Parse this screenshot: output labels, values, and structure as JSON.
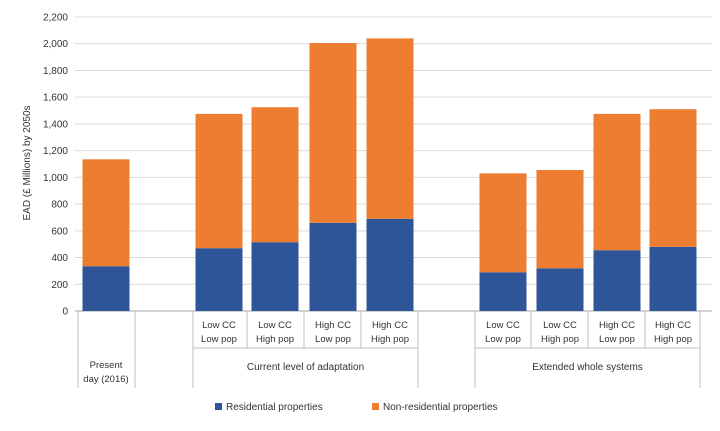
{
  "chart_data": {
    "type": "bar",
    "stacked": true,
    "ylabel": "EAD (£ Millions) by 2050s",
    "ylim": [
      0,
      2200
    ],
    "yticks": [
      "0",
      "200",
      "400",
      "600",
      "800",
      "1,000",
      "1,200",
      "1,400",
      "1,600",
      "1,800",
      "2,000",
      "2,200"
    ],
    "grid": true,
    "legend_position": "bottom",
    "colors": {
      "residential": "#2e5597",
      "nonresidential": "#ed7d31"
    },
    "series": [
      {
        "name": "Residential properties",
        "key": "residential"
      },
      {
        "name": "Non-residential properties",
        "key": "nonresidential"
      }
    ],
    "groups": [
      {
        "label": "",
        "bars": [
          {
            "label": "Present day (2016)",
            "residential": 335,
            "nonresidential": 800
          }
        ]
      },
      {
        "label": "Current level of adaptation",
        "bars": [
          {
            "label": "Low CC Low pop",
            "residential": 470,
            "nonresidential": 1005
          },
          {
            "label": "Low CC High pop",
            "residential": 515,
            "nonresidential": 1010
          },
          {
            "label": "High CC Low pop",
            "residential": 660,
            "nonresidential": 1345
          },
          {
            "label": "High CC High pop",
            "residential": 690,
            "nonresidential": 1350
          }
        ]
      },
      {
        "label": "Extended whole systems",
        "bars": [
          {
            "label": "Low CC Low pop",
            "residential": 290,
            "nonresidential": 740
          },
          {
            "label": "Low CC High pop",
            "residential": 320,
            "nonresidential": 735
          },
          {
            "label": "High CC Low pop",
            "residential": 455,
            "nonresidential": 1020
          },
          {
            "label": "High CC High pop",
            "residential": 480,
            "nonresidential": 1030
          }
        ]
      }
    ]
  }
}
